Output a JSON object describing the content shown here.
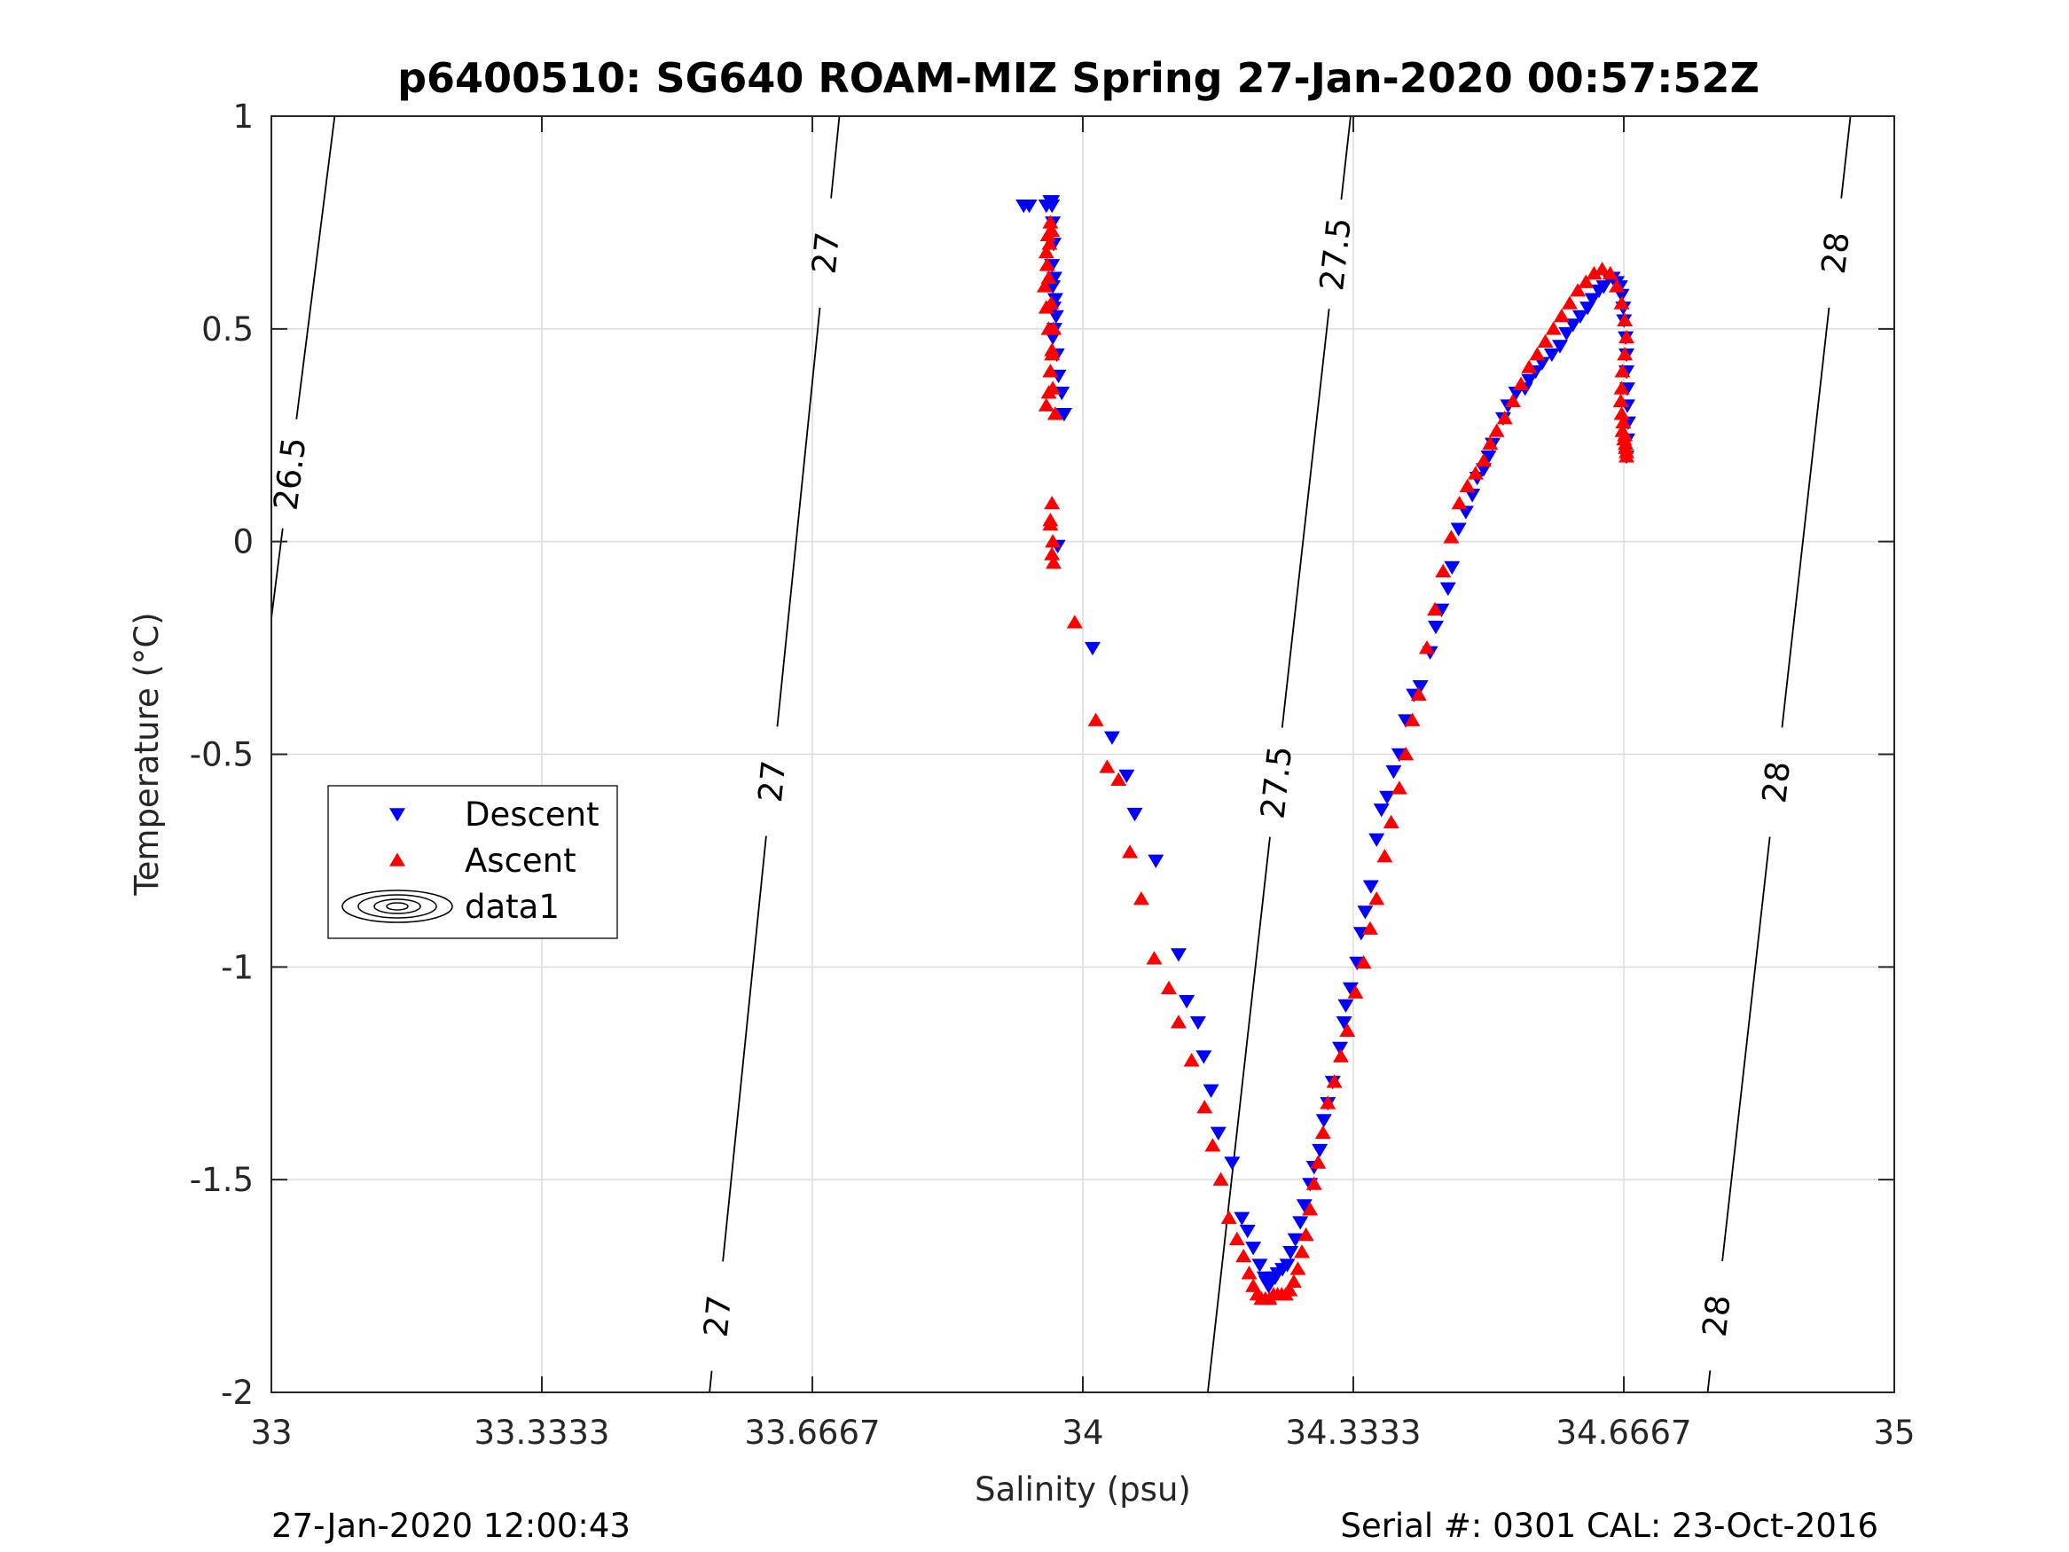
{
  "chart_data": {
    "type": "scatter",
    "title": "p6400510: SG640 ROAM-MIZ Spring 27-Jan-2020 00:57:52Z",
    "xlabel": "Salinity (psu)",
    "ylabel": "Temperature (°C)",
    "xlim": [
      33,
      35
    ],
    "ylim": [
      -2,
      1
    ],
    "xticks": [
      33,
      33.3333,
      33.6667,
      34,
      34.3333,
      34.6667,
      35
    ],
    "xtick_labels": [
      "33",
      "33.3333",
      "33.6667",
      "34",
      "34.3333",
      "34.6667",
      "35"
    ],
    "yticks": [
      -2,
      -1.5,
      -1,
      -0.5,
      0,
      0.5,
      1
    ],
    "ytick_labels": [
      "-2",
      "-1.5",
      "-1",
      "-0.5",
      "0",
      "0.5",
      "1"
    ],
    "grid": true,
    "legend_position": "middle-left",
    "footer_left": "27-Jan-2020 12:00:43",
    "footer_right": "Serial #: 0301  CAL: 23-Oct-2016",
    "colors": {
      "descent": "#0000ff",
      "ascent": "#ff0000",
      "grid": "#dcdcdc",
      "axis": "#262626"
    },
    "isopycnals": [
      {
        "label": "26.5",
        "points": [
          [
            33.0,
            -0.18
          ],
          [
            33.078,
            1.0
          ]
        ],
        "labels_at": [
          [
            33.02,
            0.16
          ]
        ]
      },
      {
        "label": "27",
        "points": [
          [
            33.54,
            -2.0
          ],
          [
            33.7,
            0.0
          ],
          [
            33.7,
            0.0
          ],
          [
            33.7,
            0.0
          ],
          [
            33.697,
            0.0
          ],
          [
            33.698,
            0.0
          ],
          [
            33.698,
            0.0
          ]
        ],
        "line": [
          [
            33.54,
            -2.0
          ],
          [
            33.7,
            0.45
          ],
          [
            33.7,
            0.45
          ],
          [
            33.7,
            0.45
          ]
        ],
        "labels_at": [
          [
            33.545,
            -1.82
          ],
          [
            33.598,
            -0.56
          ],
          [
            33.675,
            0.68
          ]
        ]
      },
      {
        "label": "27.5",
        "points": [
          [
            34.154,
            -2.0
          ],
          [
            34.33,
            1.0
          ]
        ],
        "labels_at": [
          [
            34.21,
            -0.56
          ],
          [
            34.29,
            0.68
          ]
        ]
      },
      {
        "label": "28",
        "points": [
          [
            34.77,
            -2.0
          ],
          [
            34.946,
            1.0
          ]
        ],
        "labels_at": [
          [
            34.78,
            -1.82
          ],
          [
            34.828,
            -0.56
          ],
          [
            34.92,
            0.68
          ]
        ]
      }
    ],
    "isopycnal_lines": [
      {
        "label": "26.5",
        "x": [
          33.0,
          33.078
        ],
        "y": [
          -0.18,
          1.0
        ]
      },
      {
        "label": "27",
        "x": [
          33.54,
          33.7
        ],
        "y": [
          -2.0,
          1.0
        ]
      },
      {
        "label": "27.5",
        "x": [
          34.154,
          34.33
        ],
        "y": [
          -2.0,
          1.0
        ]
      },
      {
        "label": "28",
        "x": [
          34.77,
          34.946
        ],
        "y": [
          -2.0,
          1.0
        ]
      }
    ],
    "series": [
      {
        "name": "Descent",
        "marker": "triangle-down",
        "color": "#0000ff",
        "x": [
          33.927,
          33.934,
          33.955,
          33.96,
          33.962,
          33.962,
          33.963,
          33.964,
          33.962,
          33.965,
          33.963,
          33.966,
          33.964,
          33.967,
          33.965,
          33.963,
          33.968,
          33.97,
          33.974,
          33.977,
          33.969,
          34.012,
          34.036,
          34.054,
          34.064,
          34.09,
          34.118,
          34.128,
          34.142,
          34.149,
          34.158,
          34.167,
          34.184,
          34.196,
          34.203,
          34.21,
          34.218,
          34.224,
          34.226,
          34.227,
          34.229,
          34.231,
          34.234,
          34.237,
          34.24,
          34.246,
          34.252,
          34.256,
          34.262,
          34.268,
          34.273,
          34.28,
          34.285,
          34.292,
          34.297,
          34.302,
          34.308,
          34.317,
          34.322,
          34.324,
          34.33,
          34.338,
          34.343,
          34.348,
          34.355,
          34.362,
          34.368,
          34.375,
          34.383,
          34.39,
          34.398,
          34.408,
          34.416,
          34.428,
          34.435,
          34.442,
          34.45,
          34.455,
          34.463,
          34.472,
          34.48,
          34.486,
          34.494,
          34.5,
          34.505,
          34.518,
          34.524,
          34.534,
          34.545,
          34.55,
          34.558,
          34.566,
          34.578,
          34.588,
          34.596,
          34.604,
          34.613,
          34.622,
          34.628,
          34.636,
          34.642,
          34.648,
          34.653,
          34.658,
          34.662,
          34.664,
          34.666,
          34.667,
          34.669,
          34.67,
          34.67,
          34.671,
          34.671,
          34.672,
          34.671,
          34.67
        ],
        "y": [
          0.79,
          0.79,
          0.79,
          0.8,
          0.8,
          0.79,
          0.75,
          0.7,
          0.65,
          0.62,
          0.6,
          0.57,
          0.55,
          0.53,
          0.5,
          0.48,
          0.44,
          0.39,
          0.35,
          0.3,
          -0.01,
          -0.25,
          -0.46,
          -0.55,
          -0.64,
          -0.75,
          -0.97,
          -1.08,
          -1.13,
          -1.21,
          -1.29,
          -1.39,
          -1.46,
          -1.59,
          -1.62,
          -1.66,
          -1.7,
          -1.73,
          -1.74,
          -1.74,
          -1.75,
          -1.74,
          -1.73,
          -1.73,
          -1.72,
          -1.71,
          -1.7,
          -1.67,
          -1.64,
          -1.6,
          -1.56,
          -1.51,
          -1.47,
          -1.43,
          -1.36,
          -1.32,
          -1.27,
          -1.19,
          -1.13,
          -1.09,
          -1.05,
          -0.99,
          -0.92,
          -0.87,
          -0.81,
          -0.7,
          -0.63,
          -0.6,
          -0.54,
          -0.5,
          -0.42,
          -0.36,
          -0.34,
          -0.26,
          -0.2,
          -0.16,
          -0.11,
          -0.06,
          0.03,
          0.07,
          0.11,
          0.15,
          0.17,
          0.2,
          0.23,
          0.29,
          0.32,
          0.35,
          0.36,
          0.38,
          0.4,
          0.42,
          0.44,
          0.46,
          0.49,
          0.51,
          0.53,
          0.55,
          0.57,
          0.59,
          0.6,
          0.62,
          0.62,
          0.61,
          0.6,
          0.58,
          0.55,
          0.52,
          0.48,
          0.44,
          0.4,
          0.36,
          0.32,
          0.28,
          0.24,
          0.2
        ]
      },
      {
        "name": "Ascent",
        "marker": "triangle-up",
        "color": "#ff0000",
        "x": [
          33.955,
          33.958,
          33.96,
          33.962,
          33.958,
          33.955,
          33.953,
          33.956,
          33.959,
          33.962,
          33.96,
          33.957,
          33.955,
          33.958,
          33.961,
          33.964,
          33.962,
          33.96,
          33.963,
          33.966,
          33.962,
          33.96,
          33.963,
          33.964,
          33.962,
          33.96,
          33.99,
          34.016,
          34.03,
          34.044,
          34.058,
          34.072,
          34.088,
          34.106,
          34.118,
          34.134,
          34.15,
          34.16,
          34.17,
          34.18,
          34.19,
          34.198,
          34.205,
          34.21,
          34.215,
          34.22,
          34.225,
          34.23,
          34.235,
          34.24,
          34.245,
          34.25,
          34.255,
          34.26,
          34.265,
          34.27,
          34.275,
          34.28,
          34.285,
          34.29,
          34.296,
          34.302,
          34.31,
          34.318,
          34.326,
          34.336,
          34.346,
          34.354,
          34.362,
          34.372,
          34.38,
          34.39,
          34.398,
          34.406,
          34.414,
          34.424,
          34.434,
          34.444,
          34.454,
          34.464,
          34.474,
          34.484,
          34.494,
          34.502,
          34.51,
          34.52,
          34.53,
          34.54,
          34.55,
          34.56,
          34.57,
          34.58,
          34.59,
          34.6,
          34.61,
          34.62,
          34.63,
          34.64,
          34.65,
          34.658,
          34.664,
          34.668,
          34.67,
          34.668,
          34.665,
          34.664,
          34.663,
          34.664,
          34.666,
          34.668,
          34.669,
          34.67,
          34.67,
          34.669,
          34.667,
          34.665
        ],
        "y": [
          0.32,
          0.35,
          0.4,
          0.45,
          0.5,
          0.55,
          0.6,
          0.65,
          0.7,
          0.73,
          0.75,
          0.72,
          0.68,
          0.62,
          0.56,
          0.5,
          0.44,
          0.4,
          0.36,
          0.3,
          0.09,
          0.04,
          0.0,
          -0.05,
          -0.03,
          0.05,
          -0.19,
          -0.42,
          -0.53,
          -0.56,
          -0.73,
          -0.84,
          -0.98,
          -1.05,
          -1.13,
          -1.22,
          -1.33,
          -1.42,
          -1.5,
          -1.59,
          -1.64,
          -1.68,
          -1.72,
          -1.75,
          -1.77,
          -1.78,
          -1.78,
          -1.78,
          -1.77,
          -1.77,
          -1.77,
          -1.77,
          -1.76,
          -1.74,
          -1.71,
          -1.67,
          -1.63,
          -1.57,
          -1.51,
          -1.46,
          -1.39,
          -1.32,
          -1.27,
          -1.21,
          -1.15,
          -1.06,
          -0.99,
          -0.91,
          -0.84,
          -0.74,
          -0.66,
          -0.58,
          -0.5,
          -0.42,
          -0.36,
          -0.25,
          -0.16,
          -0.07,
          0.01,
          0.09,
          0.13,
          0.16,
          0.19,
          0.23,
          0.26,
          0.29,
          0.33,
          0.37,
          0.41,
          0.44,
          0.47,
          0.5,
          0.53,
          0.56,
          0.59,
          0.61,
          0.63,
          0.64,
          0.63,
          0.6,
          0.56,
          0.52,
          0.48,
          0.44,
          0.4,
          0.36,
          0.33,
          0.3,
          0.28,
          0.25,
          0.23,
          0.21,
          0.2,
          0.22,
          0.24,
          0.26
        ]
      }
    ],
    "legend": [
      "Descent",
      "Ascent",
      "data1"
    ]
  }
}
